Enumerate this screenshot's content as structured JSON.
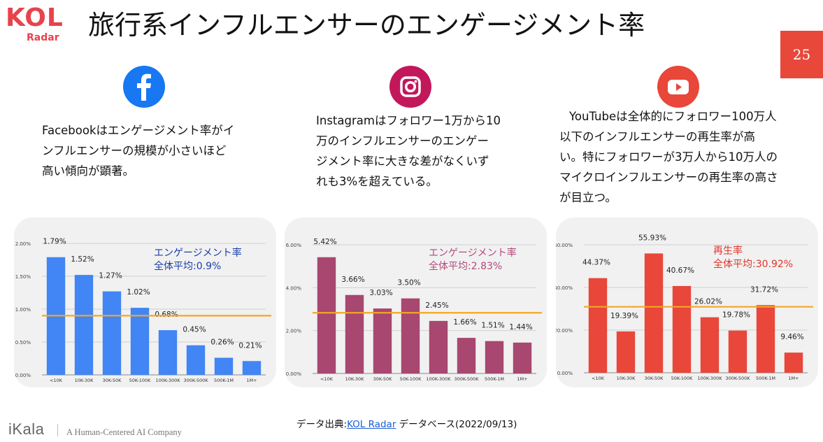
{
  "logo": {
    "text": "KOL",
    "sub": "Radar"
  },
  "title": "旅行系インフルエンサーのエンゲージメント率",
  "page_number": "25",
  "colors": {
    "accent": "#e8424c",
    "facebook": "#1877f2",
    "instagram_bar": "#a8476f",
    "youtube_bar": "#e8473a",
    "avg_line": "#f5a623"
  },
  "icons": [
    "facebook-icon",
    "instagram-icon",
    "youtube-icon"
  ],
  "descriptions": {
    "facebook": [
      "Facebookはエンゲージメント率がイ",
      "ンフルエンサーの規模が小さいほど",
      "高い傾向が顕著。"
    ],
    "instagram": [
      "Instagramはフォロワー1万から10",
      "万のインフルエンサーのエンゲー",
      "ジメント率に大きな差がなくいず",
      "れも3%を超えている。"
    ],
    "youtube": [
      "YouTubeは全体的にフォロワー100万人",
      "以下のインフルエンサーの再生率が高",
      "い。特にフォロワーが3万人から10万人の",
      "マイクロインフルエンサーの再生率の高さ",
      "が目立つ。"
    ]
  },
  "chart_data": [
    {
      "type": "bar",
      "categories": [
        "<10K",
        "10K-30K",
        "30K-50K",
        "50K-100K",
        "100K-300K",
        "300K-500K",
        "500K-1M",
        "1M+"
      ],
      "values": [
        1.79,
        1.52,
        1.27,
        1.02,
        0.68,
        0.45,
        0.26,
        0.21
      ],
      "labels": [
        "1.79%",
        "1.52%",
        "1.27%",
        "1.02%",
        "0.68%",
        "0.45%",
        "0.26%",
        "0.21%"
      ],
      "ylim": [
        0,
        2.0
      ],
      "yticks": [
        "0.00%",
        "0.50%",
        "1.00%",
        "1.50%",
        "2.00%"
      ],
      "ytick_values": [
        0,
        0.5,
        1.0,
        1.5,
        2.0
      ],
      "average": 0.9,
      "annotation": [
        "エンゲージメント率",
        "全体平均:0.9%"
      ],
      "bar_color": "#4285f4",
      "annotation_color": "#1a3fa8"
    },
    {
      "type": "bar",
      "categories": [
        "<10K",
        "10K-30K",
        "30K-50K",
        "50K-100K",
        "100K-300K",
        "300K-500K",
        "500K-1M",
        "1M+"
      ],
      "values": [
        5.42,
        3.66,
        3.03,
        3.5,
        2.45,
        1.66,
        1.51,
        1.44
      ],
      "labels": [
        "5.42%",
        "3.66%",
        "3.03%",
        "3.50%",
        "2.45%",
        "1.66%",
        "1.51%",
        "1.44%"
      ],
      "ylim": [
        0,
        6.0
      ],
      "yticks": [
        "0.00%",
        "2.00%",
        "4.00%",
        "6.00%"
      ],
      "ytick_values": [
        0,
        2.0,
        4.0,
        6.0
      ],
      "average": 2.83,
      "annotation": [
        "エンゲージメント率",
        "全体平均:2.83%"
      ],
      "bar_color": "#a8476f",
      "annotation_color": "#b04b7a"
    },
    {
      "type": "bar",
      "categories": [
        "<10K",
        "10K-30K",
        "30K-50K",
        "50K-100K",
        "100K-300K",
        "300K-500K",
        "500K-1M",
        "1M+"
      ],
      "values": [
        44.37,
        19.39,
        55.93,
        40.67,
        26.02,
        19.78,
        31.72,
        9.46
      ],
      "labels": [
        "44.37%",
        "19.39%",
        "55.93%",
        "40.67%",
        "26.02%",
        "19.78%",
        "31.72%",
        "9.46%"
      ],
      "ylim": [
        0,
        60.0
      ],
      "yticks": [
        "0.00%",
        "20.00%",
        "40.00%",
        "60.00%"
      ],
      "ytick_values": [
        0,
        20,
        40,
        60
      ],
      "average": 30.92,
      "annotation": [
        "再生率",
        "全体平均:30.92%"
      ],
      "bar_color": "#e8473a",
      "annotation_color": "#e0352b"
    }
  ],
  "source": {
    "prefix": "データ出典:",
    "link": "KOL Radar",
    "suffix": " データベース(2022/09/13)"
  },
  "footer": {
    "brand": "iKala",
    "tagline": "A Human-Centered AI Company"
  }
}
